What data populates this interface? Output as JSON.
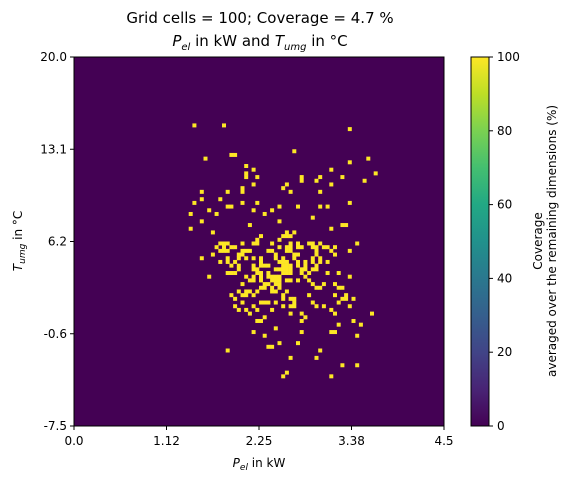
{
  "chart_data": {
    "type": "heatmap",
    "title_line1": "Grid cells = 100; Coverage = 4.7 %",
    "title_line2": {
      "p": "P",
      "p_sub": "el",
      "mid": " in kW and ",
      "t": "T",
      "t_sub": "umg",
      "end": " in °C"
    },
    "xlabel": {
      "base": "P",
      "sub": "el",
      "rest": " in kW"
    },
    "ylabel": {
      "base": "T",
      "sub": "umg",
      "rest": " in °C"
    },
    "xlim": [
      0.0,
      4.5
    ],
    "ylim": [
      -7.5,
      20.0
    ],
    "x_ticks": [
      "0.0",
      "1.12",
      "2.25",
      "3.38",
      "4.5"
    ],
    "y_ticks": [
      "-7.5",
      "-0.6",
      "6.2",
      "13.1",
      "20.0"
    ],
    "grid_cells": 100,
    "coverage_percent": 4.7,
    "background_value": 0,
    "cell_value": 100,
    "colorbar": {
      "label_line1": "Coverage",
      "label_line2": "averaged over the remaining dimensions (%)",
      "ticks": [
        "0",
        "20",
        "40",
        "60",
        "80",
        "100"
      ],
      "range": [
        0,
        100
      ],
      "colormap": "viridis"
    },
    "covered_cells": [
      [
        2,
        32
      ],
      [
        10,
        32
      ],
      [
        44,
        31
      ],
      [
        29,
        25
      ],
      [
        13,
        24
      ],
      [
        12,
        24
      ],
      [
        5,
        23
      ],
      [
        49,
        23
      ],
      [
        44,
        22
      ],
      [
        16,
        21
      ],
      [
        39,
        20
      ],
      [
        18,
        20
      ],
      [
        51,
        19
      ],
      [
        16,
        19
      ],
      [
        16,
        18
      ],
      [
        42,
        18
      ],
      [
        19,
        18
      ],
      [
        36,
        18
      ],
      [
        31,
        18
      ],
      [
        35,
        17
      ],
      [
        48,
        17
      ],
      [
        31,
        17
      ],
      [
        27,
        16
      ],
      [
        18,
        16
      ],
      [
        39,
        16
      ],
      [
        26,
        15
      ],
      [
        15,
        15
      ],
      [
        15,
        14
      ],
      [
        11,
        14
      ],
      [
        36,
        14
      ],
      [
        4,
        14
      ],
      [
        28,
        14
      ],
      [
        9,
        12
      ],
      [
        4,
        12
      ],
      [
        2,
        11
      ],
      [
        44,
        11
      ],
      [
        15,
        11
      ],
      [
        19,
        11
      ],
      [
        12,
        10
      ],
      [
        25,
        10
      ],
      [
        36,
        10
      ],
      [
        11,
        10
      ],
      [
        30,
        10
      ],
      [
        38,
        10
      ],
      [
        23,
        9
      ],
      [
        18,
        9
      ],
      [
        6,
        9
      ],
      [
        1,
        8
      ],
      [
        21,
        8
      ],
      [
        8,
        8
      ],
      [
        34,
        7
      ],
      [
        25,
        6
      ],
      [
        4,
        6
      ],
      [
        17,
        5
      ],
      [
        43,
        5
      ],
      [
        42,
        5
      ],
      [
        1,
        4
      ],
      [
        39,
        4
      ],
      [
        27,
        3
      ],
      [
        29,
        3
      ],
      [
        7,
        3
      ],
      [
        27,
        2
      ],
      [
        28,
        2
      ],
      [
        26,
        2
      ],
      [
        20,
        2
      ],
      [
        19,
        1
      ],
      [
        25,
        1
      ],
      [
        10,
        0
      ],
      [
        30,
        0
      ],
      [
        19,
        0
      ],
      [
        36,
        0
      ],
      [
        18,
        0
      ],
      [
        23,
        0
      ],
      [
        34,
        0
      ],
      [
        46,
        0
      ],
      [
        28,
        0
      ],
      [
        15,
        0
      ],
      [
        11,
        0
      ],
      [
        33,
        0
      ],
      [
        9,
        0
      ],
      [
        10,
        -1
      ],
      [
        30,
        -1
      ],
      [
        27,
        -1
      ],
      [
        38,
        -1
      ],
      [
        28,
        -1
      ],
      [
        34,
        -1
      ],
      [
        37,
        -1
      ],
      [
        12,
        -1
      ],
      [
        31,
        -1
      ],
      [
        8,
        -1
      ],
      [
        40,
        -1
      ],
      [
        35,
        -1
      ],
      [
        25,
        -1
      ],
      [
        13,
        -1
      ],
      [
        10,
        -2
      ],
      [
        39,
        -2
      ],
      [
        27,
        -2
      ],
      [
        28,
        -2
      ],
      [
        17,
        -2
      ],
      [
        11,
        -2
      ],
      [
        22,
        -2
      ],
      [
        15,
        -2
      ],
      [
        44,
        -2
      ],
      [
        23,
        -2
      ],
      [
        16,
        -2
      ],
      [
        9,
        -2
      ],
      [
        35,
        -2
      ],
      [
        7,
        -3
      ],
      [
        24,
        -3
      ],
      [
        40,
        -3
      ],
      [
        14,
        -3
      ],
      [
        15,
        -3
      ],
      [
        35,
        -3
      ],
      [
        30,
        -3
      ],
      [
        29,
        -3
      ],
      [
        24,
        -4
      ],
      [
        11,
        -4
      ],
      [
        20,
        -4
      ],
      [
        29,
        -4
      ],
      [
        34,
        -4
      ],
      [
        26,
        -4
      ],
      [
        36,
        -4
      ],
      [
        18,
        -4
      ],
      [
        14,
        -4
      ],
      [
        16,
        -4
      ],
      [
        4,
        -4
      ],
      [
        25,
        -5
      ],
      [
        38,
        -5
      ],
      [
        30,
        -5
      ],
      [
        11,
        -5
      ],
      [
        32,
        -5
      ],
      [
        26,
        -5
      ],
      [
        9,
        -5
      ],
      [
        20,
        -5
      ],
      [
        36,
        -5
      ],
      [
        27,
        -5
      ],
      [
        34,
        -5
      ],
      [
        13,
        -5
      ],
      [
        20,
        -6
      ],
      [
        14,
        -6
      ],
      [
        35,
        -6
      ],
      [
        28,
        -6
      ],
      [
        26,
        -6
      ],
      [
        21,
        -6
      ],
      [
        22,
        -6
      ],
      [
        32,
        -6
      ],
      [
        12,
        -6
      ],
      [
        27,
        -6
      ],
      [
        18,
        -6
      ],
      [
        30,
        -6
      ],
      [
        32,
        -7
      ],
      [
        24,
        -7
      ],
      [
        27,
        -7
      ],
      [
        31,
        -7
      ],
      [
        28,
        -7
      ],
      [
        25,
        -7
      ],
      [
        14,
        -7
      ],
      [
        19,
        -7
      ],
      [
        18,
        -7
      ],
      [
        35,
        -7
      ],
      [
        34,
        -7
      ],
      [
        26,
        -7
      ],
      [
        38,
        -8
      ],
      [
        20,
        -8
      ],
      [
        33,
        -8
      ],
      [
        28,
        -8
      ],
      [
        27,
        -8
      ],
      [
        11,
        -8
      ],
      [
        31,
        -8
      ],
      [
        26,
        -8
      ],
      [
        19,
        -8
      ],
      [
        13,
        -8
      ],
      [
        12,
        -8
      ],
      [
        41,
        -8
      ],
      [
        22,
        -8
      ],
      [
        20,
        -9
      ],
      [
        25,
        -9
      ],
      [
        23,
        -9
      ],
      [
        16,
        -9
      ],
      [
        32,
        -9
      ],
      [
        44,
        -9
      ],
      [
        22,
        -9
      ],
      [
        18,
        -9
      ],
      [
        6,
        -9
      ],
      [
        24,
        -9
      ],
      [
        27,
        -10
      ],
      [
        17,
        -10
      ],
      [
        24,
        -10
      ],
      [
        18,
        -10
      ],
      [
        25,
        -10
      ],
      [
        23,
        -10
      ],
      [
        33,
        -10
      ],
      [
        20,
        -10
      ],
      [
        28,
        -10
      ],
      [
        30,
        -10
      ],
      [
        34,
        -11
      ],
      [
        24,
        -11
      ],
      [
        37,
        -11
      ],
      [
        21,
        -11
      ],
      [
        22,
        -11
      ],
      [
        15,
        -11
      ],
      [
        25,
        -11
      ],
      [
        40,
        -11
      ],
      [
        23,
        -12
      ],
      [
        21,
        -12
      ],
      [
        20,
        -12
      ],
      [
        41,
        -12
      ],
      [
        36,
        -12
      ],
      [
        25,
        -12
      ],
      [
        35,
        -12
      ],
      [
        42,
        -12
      ],
      [
        19,
        -13
      ],
      [
        17,
        -13
      ],
      [
        27,
        -13
      ],
      [
        14,
        -13
      ],
      [
        23,
        -13
      ],
      [
        24,
        -13
      ],
      [
        16,
        -13
      ],
      [
        16,
        -14
      ],
      [
        43,
        -14
      ],
      [
        33,
        -14
      ],
      [
        26,
        -14
      ],
      [
        12,
        -14
      ],
      [
        15,
        -14
      ],
      [
        18,
        -14
      ],
      [
        40,
        -14
      ],
      [
        13,
        -15
      ],
      [
        28,
        -15
      ],
      [
        29,
        -15
      ],
      [
        43,
        -15
      ],
      [
        45,
        -15
      ],
      [
        42,
        -15
      ],
      [
        26,
        -15
      ],
      [
        41,
        -16
      ],
      [
        29,
        -16
      ],
      [
        21,
        -16
      ],
      [
        15,
        -16
      ],
      [
        24,
        -16
      ],
      [
        34,
        -16
      ],
      [
        20,
        -16
      ],
      [
        22,
        -16
      ],
      [
        37,
        -17
      ],
      [
        18,
        -17
      ],
      [
        26,
        -17
      ],
      [
        35,
        -17
      ],
      [
        28,
        -17
      ],
      [
        44,
        -17
      ],
      [
        13,
        -17
      ],
      [
        29,
        -17
      ],
      [
        14,
        -18
      ],
      [
        16,
        -18
      ],
      [
        39,
        -18
      ],
      [
        19,
        -18
      ],
      [
        23,
        -18
      ],
      [
        31,
        -19
      ],
      [
        17,
        -19
      ],
      [
        28,
        -19
      ],
      [
        40,
        -19
      ],
      [
        50,
        -19
      ],
      [
        21,
        -20
      ],
      [
        32,
        -20
      ],
      [
        20,
        -21
      ],
      [
        31,
        -21
      ],
      [
        19,
        -21
      ],
      [
        45,
        -21
      ],
      [
        41,
        -22
      ],
      [
        47,
        -22
      ],
      [
        24,
        -23
      ],
      [
        39,
        -24
      ],
      [
        18,
        -24
      ],
      [
        40,
        -24
      ],
      [
        31,
        -24
      ],
      [
        21,
        -25
      ],
      [
        46,
        -25
      ],
      [
        30,
        -27
      ],
      [
        25,
        -27
      ],
      [
        22,
        -28
      ],
      [
        23,
        -28
      ],
      [
        11,
        -29
      ],
      [
        36,
        -29
      ],
      [
        28,
        -31
      ],
      [
        35,
        -31
      ],
      [
        42,
        -33
      ],
      [
        46,
        -33
      ],
      [
        27,
        -35
      ],
      [
        39,
        -36
      ],
      [
        26,
        -36
      ]
    ]
  }
}
